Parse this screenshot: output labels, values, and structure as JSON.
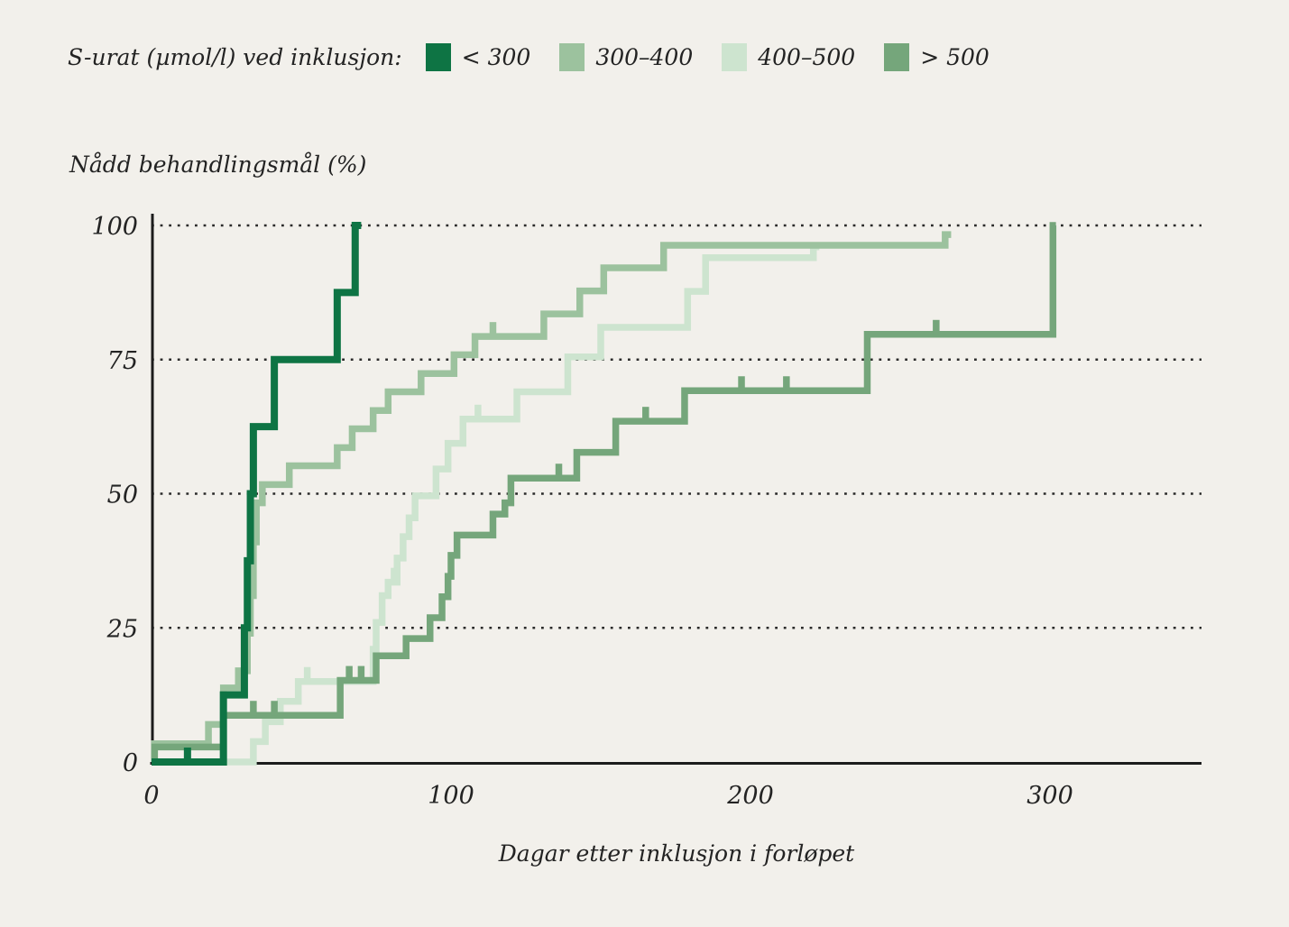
{
  "legend": {
    "label": "S-urat (µmol/l) ved inklusjon:",
    "items": [
      {
        "label": "< 300",
        "color": "#0e7444"
      },
      {
        "label": "300–400",
        "color": "#9cc29e"
      },
      {
        "label": "400–500",
        "color": "#cde4cf"
      },
      {
        "label": "> 500",
        "color": "#75a67b"
      }
    ]
  },
  "chart_data": {
    "type": "line",
    "subtype": "kaplan-meier-step",
    "title": "",
    "ylabel": "Nådd behandlingsmål (%)",
    "xlabel": "Dagar etter inklusjon i forløpet",
    "x_ticks": [
      0,
      100,
      200,
      300
    ],
    "y_ticks": [
      0,
      25,
      50,
      75,
      100
    ],
    "xlim": [
      0,
      350
    ],
    "ylim": [
      0,
      100
    ],
    "grid": "horizontal dotted lines at 25, 50, 75, 100",
    "axis_color": "#1c1c1c",
    "background_color": "#f2f0eb",
    "series": [
      {
        "key": "lt300",
        "name": "< 300",
        "color": "#0e7444",
        "points": [
          [
            0,
            0
          ],
          [
            24,
            12.5
          ],
          [
            31,
            25
          ],
          [
            32,
            37.5
          ],
          [
            33,
            50
          ],
          [
            34,
            62.5
          ],
          [
            41,
            75
          ],
          [
            62,
            87.5
          ],
          [
            68,
            100
          ]
        ],
        "end_day": 70,
        "censor_ticks": [
          {
            "day": 12,
            "dir": "up"
          }
        ]
      },
      {
        "key": "s300_400",
        "name": "300–400",
        "color": "#9cc29e",
        "points": [
          [
            0,
            0
          ],
          [
            1,
            3.4
          ],
          [
            19,
            7
          ],
          [
            24,
            13.8
          ],
          [
            29,
            17
          ],
          [
            32,
            24
          ],
          [
            33,
            31
          ],
          [
            34,
            41
          ],
          [
            35,
            48.3
          ],
          [
            37,
            51.7
          ],
          [
            46,
            55.2
          ],
          [
            62,
            58.6
          ],
          [
            67,
            62.1
          ],
          [
            74,
            65.5
          ],
          [
            79,
            69
          ],
          [
            90,
            72.4
          ],
          [
            101,
            75.9
          ],
          [
            108,
            79.3
          ],
          [
            131,
            83.5
          ],
          [
            143,
            87.8
          ],
          [
            151,
            92.1
          ],
          [
            171,
            96.3
          ],
          [
            265,
            98.3
          ]
        ],
        "end_day": 267,
        "censor_ticks": [
          {
            "day": 114,
            "dir": "up"
          }
        ]
      },
      {
        "key": "s400_500",
        "name": "400–500",
        "color": "#cde4cf",
        "points": [
          [
            0,
            0
          ],
          [
            34,
            3.8
          ],
          [
            38,
            7.5
          ],
          [
            43,
            11.3
          ],
          [
            49,
            15
          ],
          [
            74,
            21
          ],
          [
            75,
            26
          ],
          [
            77,
            31
          ],
          [
            79,
            33.5
          ],
          [
            82,
            38
          ],
          [
            84,
            42
          ],
          [
            86,
            45.5
          ],
          [
            88,
            49.6
          ],
          [
            95,
            54.6
          ],
          [
            99,
            59.4
          ],
          [
            104,
            63.9
          ],
          [
            122,
            69
          ],
          [
            139,
            75.5
          ],
          [
            150,
            81
          ],
          [
            179,
            87.7
          ],
          [
            185,
            94
          ],
          [
            221,
            96
          ]
        ],
        "end_day": 223,
        "censor_ticks": [
          {
            "day": 52,
            "dir": "up"
          },
          {
            "day": 81,
            "dir": "up"
          },
          {
            "day": 109,
            "dir": "up"
          }
        ]
      },
      {
        "key": "gt500",
        "name": "> 500",
        "color": "#75a67b",
        "points": [
          [
            0,
            0
          ],
          [
            1,
            2.8
          ],
          [
            24,
            8.7
          ],
          [
            63,
            15.2
          ],
          [
            75,
            19.8
          ],
          [
            85,
            23
          ],
          [
            93,
            26.9
          ],
          [
            97,
            30.8
          ],
          [
            99,
            34.6
          ],
          [
            100,
            38.5
          ],
          [
            102,
            42.3
          ],
          [
            114,
            46.2
          ],
          [
            118,
            48.3
          ],
          [
            120,
            52.9
          ],
          [
            142,
            57.7
          ],
          [
            155,
            63.5
          ],
          [
            178,
            69.2
          ],
          [
            239,
            79.7
          ],
          [
            301,
            100
          ]
        ],
        "end_day": 302,
        "censor_ticks": [
          {
            "day": 12,
            "dir": "down"
          },
          {
            "day": 34,
            "dir": "up"
          },
          {
            "day": 41,
            "dir": "up"
          },
          {
            "day": 66,
            "dir": "up"
          },
          {
            "day": 70,
            "dir": "up"
          },
          {
            "day": 136,
            "dir": "up"
          },
          {
            "day": 165,
            "dir": "up"
          },
          {
            "day": 197,
            "dir": "up"
          },
          {
            "day": 212,
            "dir": "up"
          },
          {
            "day": 262,
            "dir": "up"
          }
        ]
      }
    ]
  }
}
